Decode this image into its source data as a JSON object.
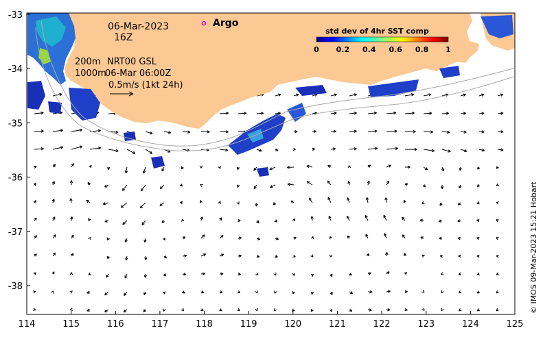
{
  "map": {
    "date_label": "06-Mar-2023",
    "time_label": "16Z",
    "depth_label_1": "200m",
    "depth_label_2": "1000m",
    "product_label": "NRT00 GSL",
    "product_time": "06-Mar 06:00Z",
    "scale_label": "0.5m/s (1kt 24h)",
    "argo_label": "Argo",
    "colorbar": {
      "title": "std dev of 4hr SST comp",
      "ticks": [
        "0",
        "0.2",
        "0.4",
        "0.6",
        "0.8",
        "1"
      ]
    },
    "credit": "© IMOS 09-Mar-2023 15:21 Hobart",
    "x_ticks": [
      "114",
      "115",
      "116",
      "117",
      "118",
      "119",
      "120",
      "121",
      "122",
      "123",
      "124",
      "125"
    ],
    "y_ticks": [
      "-33",
      "-34",
      "-35",
      "-36",
      "-37",
      "-38"
    ],
    "colors": {
      "land": "#fcc893",
      "argo": "#e000e0",
      "contour": "#a8a8a8"
    }
  }
}
